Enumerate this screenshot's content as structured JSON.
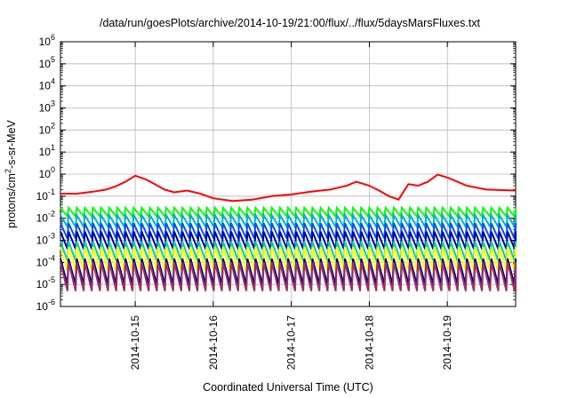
{
  "chart_data": {
    "type": "line",
    "title": "/data/run/goesPlots/archive/2014-10-19/21:00/flux/../flux/5daysMarsFluxes.txt",
    "xlabel": "Coordinated Universal Time (UTC)",
    "ylabel_base": "protons/cm",
    "ylabel_sup": "2",
    "ylabel_rest": "-s-sr-MeV",
    "y_scale": "log",
    "ylim": [
      1e-06,
      1000000.0
    ],
    "xlim": [
      "2014-10-14T01:00",
      "2014-10-19T21:00"
    ],
    "grid": true,
    "legend": "none",
    "x_ticks": [
      "2014-10-15",
      "2014-10-16",
      "2014-10-17",
      "2014-10-18",
      "2014-10-19"
    ],
    "y_ticks": [
      {
        "base": "10",
        "exp": "-6"
      },
      {
        "base": "10",
        "exp": "-5"
      },
      {
        "base": "10",
        "exp": "-4"
      },
      {
        "base": "10",
        "exp": "-3"
      },
      {
        "base": "10",
        "exp": "-2"
      },
      {
        "base": "10",
        "exp": "-1"
      },
      {
        "base": "10",
        "exp": "0"
      },
      {
        "base": "10",
        "exp": "1"
      },
      {
        "base": "10",
        "exp": "2"
      },
      {
        "base": "10",
        "exp": "3"
      },
      {
        "base": "10",
        "exp": "4"
      },
      {
        "base": "10",
        "exp": "5"
      },
      {
        "base": "10",
        "exp": "6"
      }
    ],
    "series": [
      {
        "color": "#ff0000",
        "x": [
          "2014-10-14T01:00",
          "2014-10-14T06:00",
          "2014-10-14T11:00",
          "2014-10-14T15:00",
          "2014-10-14T18:00",
          "2014-10-14T21:00",
          "2014-10-15T00:00",
          "2014-10-15T03:00",
          "2014-10-15T06:00",
          "2014-10-15T09:00",
          "2014-10-15T12:00",
          "2014-10-15T16:00",
          "2014-10-15T20:00",
          "2014-10-16T00:00",
          "2014-10-16T06:00",
          "2014-10-16T12:00",
          "2014-10-16T18:00",
          "2014-10-17T00:00",
          "2014-10-17T06:00",
          "2014-10-17T12:00",
          "2014-10-17T17:00",
          "2014-10-17T20:00",
          "2014-10-18T00:00",
          "2014-10-18T03:00",
          "2014-10-18T06:00",
          "2014-10-18T09:00",
          "2014-10-18T12:00",
          "2014-10-18T15:00",
          "2014-10-18T18:00",
          "2014-10-18T21:00",
          "2014-10-19T00:00",
          "2014-10-19T06:00",
          "2014-10-19T12:00",
          "2014-10-19T21:00"
        ],
        "y": [
          0.13,
          0.13,
          0.16,
          0.2,
          0.28,
          0.45,
          0.85,
          0.6,
          0.35,
          0.2,
          0.15,
          0.18,
          0.13,
          0.08,
          0.06,
          0.07,
          0.1,
          0.12,
          0.16,
          0.2,
          0.3,
          0.45,
          0.3,
          0.18,
          0.1,
          0.07,
          0.35,
          0.3,
          0.45,
          0.95,
          0.7,
          0.3,
          0.2,
          0.18
        ]
      }
    ],
    "sawtooth_series": [
      {
        "color": "#00ff00",
        "peak": 0.03,
        "trough": 0.012
      },
      {
        "color": "#00b0c8",
        "peak": 0.014,
        "trough": 0.004
      },
      {
        "color": "#0050ff",
        "peak": 0.006,
        "trough": 0.0012
      },
      {
        "color": "#0000a0",
        "peak": 0.0025,
        "trough": 0.0004
      },
      {
        "color": "#00ccaa",
        "peak": 0.0009,
        "trough": 0.00012
      },
      {
        "color": "#ffff00",
        "peak": 0.0005,
        "trough": 4e-05
      },
      {
        "color": "#000080",
        "peak": 0.00015,
        "trough": 1e-05
      },
      {
        "color": "#993366",
        "peak": 0.0001,
        "trough": 5e-06
      }
    ]
  }
}
